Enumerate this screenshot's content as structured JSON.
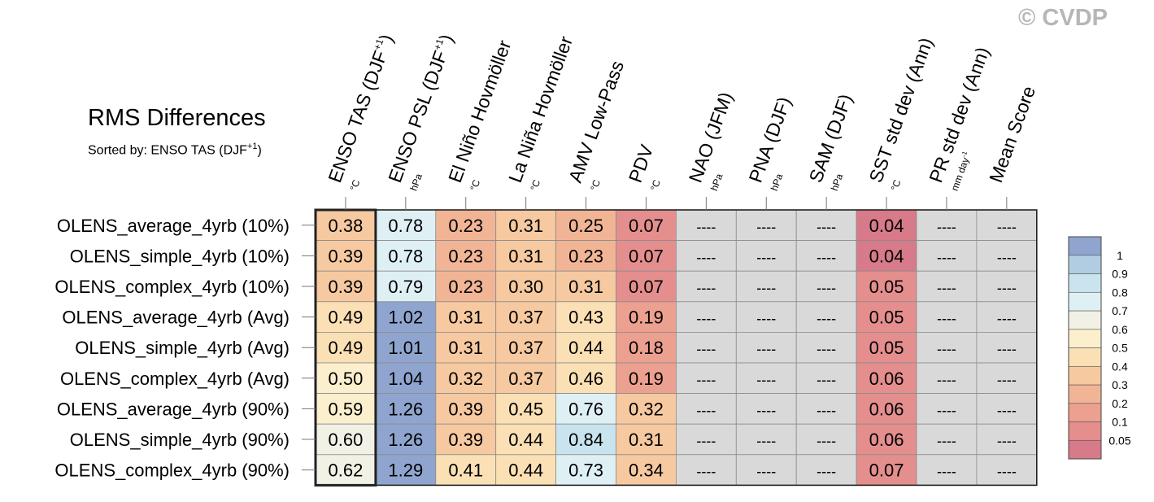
{
  "watermark": "© CVDP",
  "chart_data": {
    "type": "heatmap",
    "title": "RMS Differences",
    "subtitle": "Sorted by: ENSO TAS (DJF+1)",
    "columns": [
      {
        "label": "ENSO TAS (DJF",
        "sup": "+1",
        "close": ")",
        "unit": "°C"
      },
      {
        "label": "ENSO PSL (DJF",
        "sup": "+1",
        "close": ")",
        "unit": "hPa"
      },
      {
        "label": "El Niño Hovmöller",
        "unit": "°C"
      },
      {
        "label": "La Niña Hovmöller",
        "unit": "°C"
      },
      {
        "label": "AMV Low-Pass",
        "unit": "°C"
      },
      {
        "label": "PDV",
        "unit": "°C"
      },
      {
        "label": "NAO (JFM)",
        "unit": "hPa"
      },
      {
        "label": "PNA (DJF)",
        "unit": "hPa"
      },
      {
        "label": "SAM (DJF)",
        "unit": "hPa"
      },
      {
        "label": "SST std dev (Ann)",
        "unit": "°C"
      },
      {
        "label": "PR std dev (Ann)",
        "unit": "mm day",
        "unit_sup": "-1"
      },
      {
        "label": "Mean Score",
        "unit": ""
      }
    ],
    "rows": [
      "OLENS_average_4yrb (10%)",
      "OLENS_simple_4yrb (10%)",
      "OLENS_complex_4yrb (10%)",
      "OLENS_average_4yrb (Avg)",
      "OLENS_simple_4yrb (Avg)",
      "OLENS_complex_4yrb (Avg)",
      "OLENS_average_4yrb (90%)",
      "OLENS_simple_4yrb (90%)",
      "OLENS_complex_4yrb (90%)"
    ],
    "missing_label": "----",
    "values": [
      [
        0.38,
        0.78,
        0.23,
        0.31,
        0.25,
        0.07,
        null,
        null,
        null,
        0.04,
        null,
        null
      ],
      [
        0.39,
        0.78,
        0.23,
        0.31,
        0.23,
        0.07,
        null,
        null,
        null,
        0.04,
        null,
        null
      ],
      [
        0.39,
        0.79,
        0.23,
        0.3,
        0.31,
        0.07,
        null,
        null,
        null,
        0.05,
        null,
        null
      ],
      [
        0.49,
        1.02,
        0.31,
        0.37,
        0.43,
        0.19,
        null,
        null,
        null,
        0.05,
        null,
        null
      ],
      [
        0.49,
        1.01,
        0.31,
        0.37,
        0.44,
        0.18,
        null,
        null,
        null,
        0.05,
        null,
        null
      ],
      [
        0.5,
        1.04,
        0.32,
        0.37,
        0.46,
        0.19,
        null,
        null,
        null,
        0.06,
        null,
        null
      ],
      [
        0.59,
        1.26,
        0.39,
        0.45,
        0.76,
        0.32,
        null,
        null,
        null,
        0.06,
        null,
        null
      ],
      [
        0.6,
        1.26,
        0.39,
        0.44,
        0.84,
        0.31,
        null,
        null,
        null,
        0.06,
        null,
        null
      ],
      [
        0.62,
        1.29,
        0.41,
        0.44,
        0.73,
        0.34,
        null,
        null,
        null,
        0.07,
        null,
        null
      ]
    ],
    "sorted_column": 0,
    "colorbar": {
      "levels": [
        "0.05",
        "0.1",
        "0.2",
        "0.3",
        "0.4",
        "0.5",
        "0.6",
        "0.7",
        "0.8",
        "0.9",
        "1"
      ],
      "colors": [
        "#d77a89",
        "#e48e8e",
        "#eca08f",
        "#f1b596",
        "#f6c9a0",
        "#fae0b4",
        "#fbefce",
        "#f2f1e6",
        "#dff0f4",
        "#c9e4ef",
        "#b1cde1",
        "#8fa5cf"
      ],
      "missing_color": "#d9d9d9"
    }
  }
}
